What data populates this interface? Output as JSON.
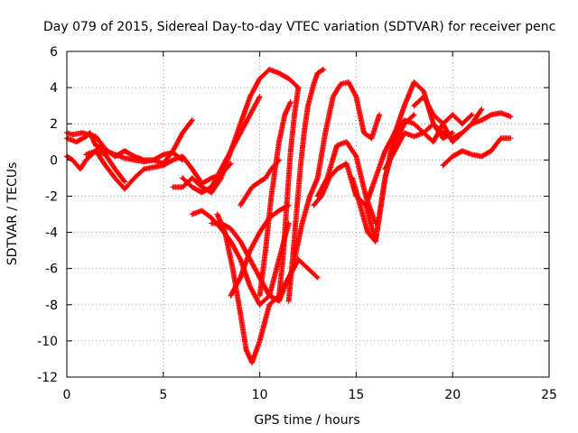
{
  "chart_data": {
    "type": "scatter",
    "title": "Day 079 of 2015, Sidereal Day-to-day VTEC variation (SDTVAR) for receiver penc",
    "xlabel": "GPS time / hours",
    "ylabel": "SDTVAR / TECUs",
    "xlim": [
      0,
      25
    ],
    "ylim": [
      -12,
      6
    ],
    "xticks": [
      0,
      5,
      10,
      15,
      20,
      25
    ],
    "yticks": [
      -12,
      -10,
      -8,
      -6,
      -4,
      -2,
      0,
      2,
      4,
      6
    ],
    "xtick_labels": [
      "0",
      "5",
      "10",
      "15",
      "20",
      "25"
    ],
    "ytick_labels": [
      "-12",
      "-10",
      "-8",
      "-6",
      "-4",
      "-2",
      "0",
      "2",
      "4",
      "6"
    ],
    "grid": true,
    "marker": "+",
    "color": "#ff0000",
    "series": [
      {
        "x": [
          0,
          0.5,
          1.0,
          1.2,
          1.5,
          2.0,
          2.5,
          3.0,
          3.5,
          4.0,
          4.5,
          5.0,
          5.5,
          6.0,
          6.5
        ],
        "y": [
          1.2,
          1.0,
          1.3,
          1.5,
          0.8,
          0.5,
          0.3,
          0.1,
          0.0,
          -0.1,
          0.0,
          -0.2,
          0.5,
          1.5,
          2.2
        ]
      },
      {
        "x": [
          0,
          0.3,
          0.8,
          1.5,
          2.0,
          2.5,
          3.0,
          3.5,
          4.0,
          4.5,
          5.0,
          5.5,
          6.0
        ],
        "y": [
          1.5,
          1.4,
          1.5,
          1.3,
          0.6,
          0.2,
          0.5,
          0.2,
          0.0,
          0.0,
          0.3,
          0.4,
          0.0
        ]
      },
      {
        "x": [
          0,
          0.3,
          0.7,
          1.0,
          1.5,
          2.0,
          2.5,
          3.0
        ],
        "y": [
          0.2,
          0.0,
          -0.5,
          0.0,
          0.5,
          0.3,
          -0.5,
          -1.2
        ]
      },
      {
        "x": [
          1.0,
          1.5,
          2.0,
          2.5,
          3.0,
          3.5,
          4.0,
          5.0,
          5.5,
          6.0,
          6.5,
          7.0,
          7.5,
          8.0,
          8.5
        ],
        "y": [
          0.3,
          0.5,
          -0.3,
          -1.0,
          -1.6,
          -1.0,
          -0.5,
          -0.3,
          0.0,
          0.2,
          -0.5,
          -1.3,
          -1.0,
          -0.8,
          -0.2
        ]
      },
      {
        "x": [
          5.5,
          6.0,
          6.5,
          7.0,
          7.5,
          8.0,
          8.5,
          9.0,
          9.5,
          10.0,
          10.5,
          11.0,
          11.5,
          12.0
        ],
        "y": [
          -1.5,
          -1.5,
          -1.0,
          -1.5,
          -1.8,
          -1.0,
          0.5,
          2.0,
          3.5,
          4.5,
          5.0,
          4.8,
          4.5,
          4.0
        ]
      },
      {
        "x": [
          6.0,
          6.5,
          7.0,
          7.5,
          8.0,
          8.5,
          9.0,
          9.5,
          10.0
        ],
        "y": [
          -1.0,
          -1.5,
          -1.8,
          -1.5,
          -0.5,
          0.5,
          1.5,
          2.5,
          3.5
        ]
      },
      {
        "x": [
          6.5,
          7.0,
          7.5,
          8.0,
          8.5,
          9.0,
          9.5,
          10.0,
          10.5,
          11.0,
          11.5
        ],
        "y": [
          -3.0,
          -2.8,
          -3.2,
          -3.8,
          -4.5,
          -5.5,
          -7.0,
          -8.0,
          -7.5,
          -5.5,
          -3.5
        ]
      },
      {
        "x": [
          7.5,
          8.0,
          8.5,
          9.0,
          9.5,
          10.0,
          10.5,
          11.0,
          11.5,
          12.0
        ],
        "y": [
          -3.5,
          -3.5,
          -3.8,
          -4.5,
          -5.5,
          -6.5,
          -7.5,
          -7.8,
          -6.5,
          -5.5
        ]
      },
      {
        "x": [
          7.8,
          8.2,
          8.6,
          9.0,
          9.3,
          9.6,
          10.0,
          10.5,
          11.0,
          11.5,
          12.0,
          12.5,
          13.0
        ],
        "y": [
          -3.0,
          -4.0,
          -6.0,
          -8.5,
          -10.5,
          -11.2,
          -10.0,
          -8.0,
          -7.5,
          -6.5,
          -5.5,
          -6.0,
          -6.5
        ]
      },
      {
        "x": [
          8.5,
          9.0,
          9.5,
          10.0,
          10.5,
          11.0,
          11.5
        ],
        "y": [
          -7.5,
          -6.5,
          -5.0,
          -4.0,
          -3.2,
          -2.8,
          -2.5
        ]
      },
      {
        "x": [
          9.0,
          9.3,
          9.6,
          10.0,
          10.3,
          10.6,
          11.0
        ],
        "y": [
          -2.5,
          -2.0,
          -1.5,
          -1.2,
          -1.0,
          -0.5,
          0.0
        ]
      },
      {
        "x": [
          10.0,
          10.3,
          10.6,
          11.0,
          11.3,
          11.6
        ],
        "y": [
          -7.5,
          -5.0,
          -2.0,
          1.0,
          2.5,
          3.2
        ]
      },
      {
        "x": [
          11.0,
          11.2,
          11.4,
          11.6,
          11.8,
          12.0
        ],
        "y": [
          -7.5,
          -5.5,
          -2.5,
          0.5,
          2.5,
          4.0
        ]
      },
      {
        "x": [
          11.5,
          11.7,
          11.9,
          12.1,
          12.3,
          12.5,
          12.8,
          13.0,
          13.3
        ],
        "y": [
          -7.8,
          -5.5,
          -3.0,
          -0.5,
          1.5,
          3.0,
          4.2,
          4.8,
          5.0
        ]
      },
      {
        "x": [
          11.8,
          12.2,
          12.6,
          13.0,
          13.4,
          13.8,
          14.2,
          14.6,
          15.0,
          15.4,
          15.8,
          16.2
        ],
        "y": [
          -5.5,
          -3.5,
          -2.0,
          -1.0,
          1.5,
          3.5,
          4.2,
          4.3,
          3.5,
          1.5,
          1.2,
          2.5
        ]
      },
      {
        "x": [
          13.0,
          13.5,
          14.0,
          14.5,
          15.0,
          15.5,
          16.0
        ],
        "y": [
          -2.0,
          -1.0,
          0.8,
          1.0,
          0.2,
          -2.0,
          -3.5
        ]
      },
      {
        "x": [
          12.8,
          13.2,
          13.6,
          14.0,
          14.5,
          15.0,
          15.5,
          16.0,
          16.5,
          17.0,
          17.5,
          18.0
        ],
        "y": [
          -2.5,
          -2.0,
          -1.0,
          -0.5,
          -0.2,
          -2.0,
          -2.5,
          -4.5,
          -1.0,
          1.0,
          2.0,
          2.5
        ]
      },
      {
        "x": [
          14.8,
          15.2,
          15.6,
          16.0,
          16.5,
          17.0,
          17.5,
          18.0,
          18.5,
          19.0,
          19.5,
          20.0
        ],
        "y": [
          -1.0,
          -2.5,
          -4.0,
          -4.5,
          -1.0,
          1.5,
          3.0,
          4.3,
          3.8,
          2.0,
          1.2,
          1.5
        ]
      },
      {
        "x": [
          15.5,
          16.0,
          16.5,
          17.0,
          17.5,
          18.0,
          18.5,
          19.0,
          19.5,
          20.0,
          20.5,
          21.0
        ],
        "y": [
          -2.5,
          -1.0,
          0.5,
          1.5,
          2.2,
          2.0,
          1.5,
          1.0,
          2.0,
          2.5,
          2.0,
          2.5
        ]
      },
      {
        "x": [
          16.5,
          17.0,
          17.5,
          18.0,
          18.5,
          19.0,
          19.5,
          20.0,
          20.5,
          21.0,
          21.5
        ],
        "y": [
          -0.5,
          0.5,
          1.5,
          1.3,
          1.5,
          2.0,
          1.5,
          1.2,
          1.5,
          2.0,
          2.8
        ]
      },
      {
        "x": [
          18.0,
          18.5,
          19.0,
          19.5,
          20.0,
          20.5,
          21.0,
          21.5,
          22.0,
          22.5,
          23.0
        ],
        "y": [
          3.0,
          3.5,
          2.5,
          2.0,
          1.0,
          1.5,
          2.0,
          2.2,
          2.5,
          2.6,
          2.4
        ]
      },
      {
        "x": [
          19.5,
          20.0,
          20.5,
          21.0,
          21.5,
          22.0,
          22.5,
          23.0
        ],
        "y": [
          -0.3,
          0.2,
          0.5,
          0.3,
          0.2,
          0.5,
          1.2,
          1.2
        ]
      }
    ]
  }
}
